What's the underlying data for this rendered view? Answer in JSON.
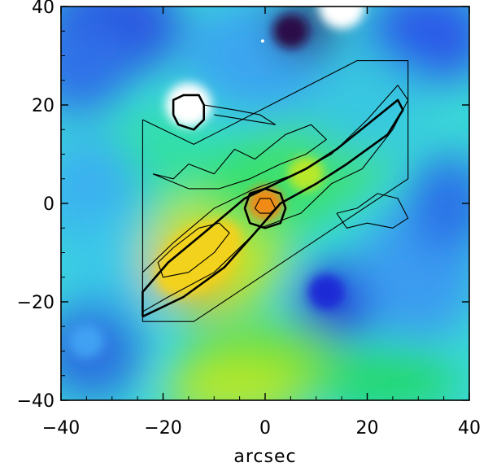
{
  "chart_data": {
    "type": "heatmap",
    "title": "",
    "xlabel": "arcsec",
    "ylabel": "",
    "xlim": [
      -40,
      40
    ],
    "ylim": [
      -40,
      40
    ],
    "x_ticks": [
      -40,
      -20,
      0,
      20,
      40
    ],
    "y_ticks": [
      -40,
      -20,
      0,
      20,
      40
    ],
    "x_tick_labels": [
      "−40",
      "−20",
      "0",
      "20",
      "40"
    ],
    "y_tick_labels": [
      "−40",
      "−20",
      "0",
      "20",
      "40"
    ],
    "grid": false,
    "legend": "none",
    "colormap": [
      "#2c0a4a",
      "#1f2ad6",
      "#3fa0f2",
      "#32e6e6",
      "#22e06a",
      "#b8e82a",
      "#f2d21a",
      "#f28a14",
      "#e81e12",
      "#ffffff"
    ],
    "color_features": [
      {
        "feature": "background field",
        "x": 0,
        "y": 0,
        "level": 0.45
      },
      {
        "feature": "bright compact source",
        "x": -15,
        "y": 20,
        "level": 1.0
      },
      {
        "feature": "nucleus",
        "x": 0,
        "y": 0,
        "level": 0.82
      },
      {
        "feature": "south-east lobe",
        "x": -13,
        "y": -11,
        "level": 0.72
      },
      {
        "feature": "ridge",
        "x": 8,
        "y": 6,
        "level": 0.55
      },
      {
        "feature": "dark spot top",
        "x": 5,
        "y": 35,
        "level": 0.0
      },
      {
        "feature": "saturated spot top edge",
        "x": 15,
        "y": 40,
        "level": 1.0
      },
      {
        "feature": "blue hole lower right",
        "x": 12,
        "y": -18,
        "level": 0.15
      },
      {
        "feature": "blue hole lower left",
        "x": -35,
        "y": -28,
        "level": 0.25
      }
    ],
    "contours": [
      {
        "feature": "survey footprint outline",
        "weight": "thin",
        "points": [
          [
            -24,
            17
          ],
          [
            -24,
            -24
          ],
          [
            -14,
            -24
          ],
          [
            28,
            5
          ],
          [
            28,
            29
          ],
          [
            18,
            29
          ],
          [
            -14,
            12
          ],
          [
            -24,
            17
          ]
        ]
      },
      {
        "feature": "outer jet contour",
        "weight": "thin",
        "points": [
          [
            -24,
            -22
          ],
          [
            -19,
            -19
          ],
          [
            -10,
            -14
          ],
          [
            -1,
            -5
          ],
          [
            7,
            -2
          ],
          [
            13,
            4
          ],
          [
            19,
            7
          ],
          [
            25,
            15
          ],
          [
            28,
            21
          ],
          [
            26,
            24
          ],
          [
            20,
            17
          ],
          [
            13,
            10
          ],
          [
            6,
            6
          ],
          [
            -2,
            3
          ],
          [
            -10,
            -1
          ],
          [
            -18,
            -8
          ],
          [
            -24,
            -14
          ],
          [
            -24,
            -22
          ]
        ]
      },
      {
        "feature": "jet ridge contour",
        "weight": "thick",
        "points": [
          [
            -24,
            -23
          ],
          [
            -16,
            -19
          ],
          [
            -8,
            -13
          ],
          [
            -2,
            -6
          ],
          [
            3,
            0
          ],
          [
            10,
            4
          ],
          [
            16,
            8
          ],
          [
            24,
            14
          ],
          [
            27,
            19
          ],
          [
            26,
            21
          ],
          [
            20,
            16
          ],
          [
            14,
            11
          ],
          [
            8,
            7
          ],
          [
            2,
            4
          ],
          [
            -4,
            1
          ],
          [
            -12,
            -6
          ],
          [
            -19,
            -12
          ],
          [
            -24,
            -18
          ],
          [
            -24,
            -23
          ]
        ]
      },
      {
        "feature": "south-east lobe inner contour",
        "weight": "thin",
        "points": [
          [
            -20,
            -15
          ],
          [
            -15,
            -14
          ],
          [
            -10,
            -10
          ],
          [
            -7,
            -6
          ],
          [
            -9,
            -4
          ],
          [
            -13,
            -5
          ],
          [
            -18,
            -9
          ],
          [
            -21,
            -12
          ],
          [
            -20,
            -15
          ]
        ]
      },
      {
        "feature": "nucleus contour",
        "weight": "thick",
        "points": [
          [
            -4,
            -1
          ],
          [
            -3,
            -4
          ],
          [
            0,
            -5
          ],
          [
            3,
            -4
          ],
          [
            4,
            -1
          ],
          [
            3,
            2
          ],
          [
            0,
            3
          ],
          [
            -3,
            2
          ],
          [
            -4,
            -1
          ]
        ]
      },
      {
        "feature": "nucleus inner contour",
        "weight": "thin",
        "points": [
          [
            -2,
            -1
          ],
          [
            -1,
            -2
          ],
          [
            1,
            -2
          ],
          [
            2,
            -1
          ],
          [
            1,
            1
          ],
          [
            -1,
            1
          ],
          [
            -2,
            -1
          ]
        ]
      },
      {
        "feature": "bright source contour",
        "weight": "thick",
        "points": [
          [
            -18,
            18
          ],
          [
            -17,
            16
          ],
          [
            -14,
            15
          ],
          [
            -12,
            17
          ],
          [
            -12,
            20
          ],
          [
            -13,
            22
          ],
          [
            -16,
            22
          ],
          [
            -18,
            21
          ],
          [
            -18,
            18
          ]
        ]
      },
      {
        "feature": "bright source tail",
        "weight": "thin",
        "points": [
          [
            -12,
            20
          ],
          [
            -6,
            19
          ],
          [
            -1,
            18
          ],
          [
            2,
            16
          ],
          [
            -4,
            17
          ],
          [
            -10,
            18
          ]
        ]
      },
      {
        "feature": "upper patchy contour",
        "weight": "thin",
        "points": [
          [
            -22,
            6
          ],
          [
            -18,
            5
          ],
          [
            -15,
            8
          ],
          [
            -10,
            6
          ],
          [
            -6,
            11
          ],
          [
            -2,
            9
          ],
          [
            4,
            14
          ],
          [
            9,
            16
          ],
          [
            12,
            13
          ],
          [
            8,
            10
          ],
          [
            3,
            8
          ],
          [
            -3,
            5
          ],
          [
            -9,
            3
          ],
          [
            -15,
            3
          ],
          [
            -22,
            6
          ]
        ]
      },
      {
        "feature": "right patchy contour",
        "weight": "thin",
        "points": [
          [
            14,
            -2
          ],
          [
            18,
            -1
          ],
          [
            22,
            2
          ],
          [
            26,
            1
          ],
          [
            28,
            -3
          ],
          [
            25,
            -5
          ],
          [
            20,
            -4
          ],
          [
            16,
            -5
          ],
          [
            14,
            -2
          ]
        ]
      }
    ],
    "markers": [
      {
        "feature": "white dot",
        "x": -0.5,
        "y": 33
      }
    ]
  }
}
